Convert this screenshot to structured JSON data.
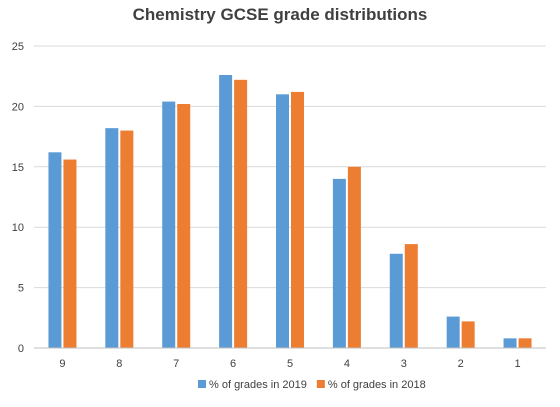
{
  "chart_data": {
    "type": "bar",
    "title": "Chemistry GCSE grade distributions",
    "xlabel": "",
    "ylabel": "",
    "categories": [
      "9",
      "8",
      "7",
      "6",
      "5",
      "4",
      "3",
      "2",
      "1"
    ],
    "series": [
      {
        "name": "% of grades in 2019",
        "color": "#5b9bd5",
        "values": [
          16.2,
          18.2,
          20.4,
          22.6,
          21.0,
          14.0,
          7.8,
          2.6,
          0.8
        ]
      },
      {
        "name": "% of grades in 2018",
        "color": "#ed7d31",
        "values": [
          15.6,
          18.0,
          20.2,
          22.2,
          21.2,
          15.0,
          8.6,
          2.2,
          0.8
        ]
      }
    ],
    "ylim": [
      0,
      25
    ],
    "yticks": [
      0,
      5,
      10,
      15,
      20,
      25
    ],
    "grid": true,
    "legend_position": "bottom"
  }
}
